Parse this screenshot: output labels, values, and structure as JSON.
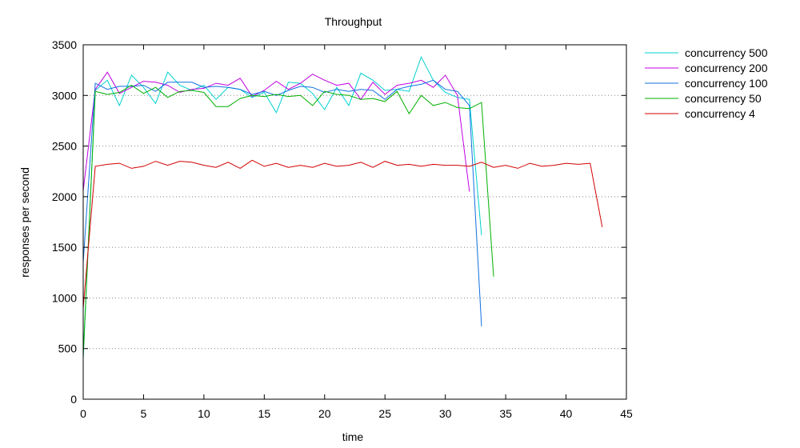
{
  "chart_data": {
    "type": "line",
    "title": "Throughput",
    "xlabel": "time",
    "ylabel": "responses per second",
    "xlim": [
      0,
      45
    ],
    "ylim": [
      0,
      3500
    ],
    "x_ticks": [
      0,
      5,
      10,
      15,
      20,
      25,
      30,
      35,
      40,
      45
    ],
    "y_ticks": [
      0,
      500,
      1000,
      1500,
      2000,
      2500,
      3000,
      3500
    ],
    "grid": "horizontal dotted",
    "legend_position": "outside-top-right",
    "series": [
      {
        "name": "concurrency 500",
        "color": "#00d0d0",
        "x": [
          0,
          1,
          2,
          3,
          4,
          5,
          6,
          7,
          8,
          9,
          10,
          11,
          12,
          13,
          14,
          15,
          16,
          17,
          18,
          19,
          20,
          21,
          22,
          23,
          24,
          25,
          26,
          27,
          28,
          29,
          30,
          31,
          32,
          33
        ],
        "values": [
          400,
          3050,
          3150,
          2900,
          3200,
          3080,
          2920,
          3230,
          3100,
          3050,
          3100,
          2960,
          3080,
          3060,
          2980,
          3030,
          2830,
          3130,
          3120,
          3020,
          2860,
          3080,
          2900,
          3220,
          3150,
          3050,
          3060,
          3040,
          3380,
          3150,
          3030,
          2980,
          2960,
          1620
        ]
      },
      {
        "name": "concurrency 200",
        "color": "#c000e0",
        "x": [
          0,
          1,
          2,
          3,
          4,
          5,
          6,
          7,
          8,
          9,
          10,
          11,
          12,
          13,
          14,
          15,
          16,
          17,
          18,
          19,
          20,
          21,
          22,
          23,
          24,
          25,
          26,
          27,
          28,
          29,
          30,
          31,
          32
        ],
        "values": [
          2060,
          3060,
          3230,
          3020,
          3080,
          3140,
          3130,
          3100,
          3030,
          3060,
          3070,
          3120,
          3100,
          3170,
          2990,
          3050,
          3140,
          3060,
          3120,
          3210,
          3150,
          3100,
          3120,
          2960,
          3130,
          3010,
          3100,
          3120,
          3150,
          3080,
          3200,
          3000,
          2050
        ]
      },
      {
        "name": "concurrency 100",
        "color": "#1070e0",
        "x": [
          0,
          1,
          2,
          3,
          4,
          5,
          6,
          7,
          8,
          9,
          10,
          11,
          12,
          13,
          14,
          15,
          16,
          17,
          18,
          19,
          20,
          21,
          22,
          23,
          24,
          25,
          26,
          27,
          28,
          29,
          30,
          31,
          32,
          33
        ],
        "values": [
          1350,
          3120,
          3060,
          3090,
          3090,
          3100,
          3040,
          3130,
          3130,
          3130,
          3080,
          3090,
          3080,
          3060,
          3010,
          3040,
          3000,
          3050,
          3090,
          3080,
          3030,
          3060,
          3040,
          3060,
          3050,
          2960,
          3060,
          3090,
          3110,
          3150,
          3060,
          3040,
          2900,
          720
        ]
      },
      {
        "name": "concurrency 50",
        "color": "#00b000",
        "x": [
          0,
          1,
          2,
          3,
          4,
          5,
          6,
          7,
          8,
          9,
          10,
          11,
          12,
          13,
          14,
          15,
          16,
          17,
          18,
          19,
          20,
          21,
          22,
          23,
          24,
          25,
          26,
          27,
          28,
          29,
          30,
          31,
          32,
          33,
          34
        ],
        "values": [
          420,
          3040,
          3010,
          3030,
          3100,
          3020,
          3080,
          2980,
          3040,
          3050,
          3030,
          2890,
          2890,
          2970,
          3000,
          2990,
          3010,
          2990,
          3000,
          2900,
          3040,
          3010,
          3000,
          2960,
          2970,
          2940,
          3040,
          2820,
          3000,
          2900,
          2930,
          2880,
          2870,
          2930,
          1210
        ]
      },
      {
        "name": "concurrency 4",
        "color": "#d00000",
        "x": [
          0,
          1,
          2,
          3,
          4,
          5,
          6,
          7,
          8,
          9,
          10,
          11,
          12,
          13,
          14,
          15,
          16,
          17,
          18,
          19,
          20,
          21,
          22,
          23,
          24,
          25,
          26,
          27,
          28,
          29,
          30,
          31,
          32,
          33,
          34,
          35,
          36,
          37,
          38,
          39,
          40,
          41,
          42,
          43
        ],
        "values": [
          900,
          2300,
          2320,
          2330,
          2280,
          2300,
          2350,
          2310,
          2350,
          2340,
          2310,
          2290,
          2340,
          2280,
          2360,
          2300,
          2330,
          2290,
          2310,
          2290,
          2330,
          2300,
          2310,
          2340,
          2290,
          2350,
          2310,
          2320,
          2300,
          2320,
          2310,
          2310,
          2300,
          2340,
          2290,
          2310,
          2280,
          2330,
          2300,
          2310,
          2330,
          2320,
          2330,
          1700
        ]
      }
    ]
  }
}
